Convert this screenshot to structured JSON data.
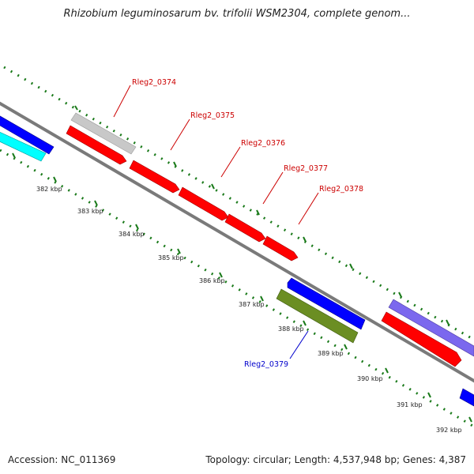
{
  "header": {
    "title": "Rhizobium leguminosarum bv. trifolii WSM2304, complete genom..."
  },
  "footer": {
    "accession": "Accession: NC_011369",
    "summary": "Topology: circular; Length: 4,537,948 bp; Genes: 4,387"
  },
  "scale": {
    "tick_labels": [
      "382 kbp",
      "383 kbp",
      "384 kbp",
      "385 kbp",
      "386 kbp",
      "387 kbp",
      "388 kbp",
      "389 kbp",
      "390 kbp",
      "391 kbp",
      "392 kbp"
    ]
  },
  "genes": {
    "labels": [
      "Rleg2_0374",
      "Rleg2_0375",
      "Rleg2_0376",
      "Rleg2_0377",
      "Rleg2_0378",
      "Rleg2_0379"
    ]
  },
  "colors": {
    "forward_label": "#cc0000",
    "reverse_label": "#0000cc",
    "backbone": "#8a8a8a",
    "tick_dots": "#1a7a1a",
    "red_gene": "#ff0000",
    "grey_gene": "#c8c8c8",
    "blue_gene": "#0000ff",
    "cyan_gene": "#00ffff",
    "olive_gene": "#6b8e23",
    "purple_gene": "#7b68ee"
  }
}
